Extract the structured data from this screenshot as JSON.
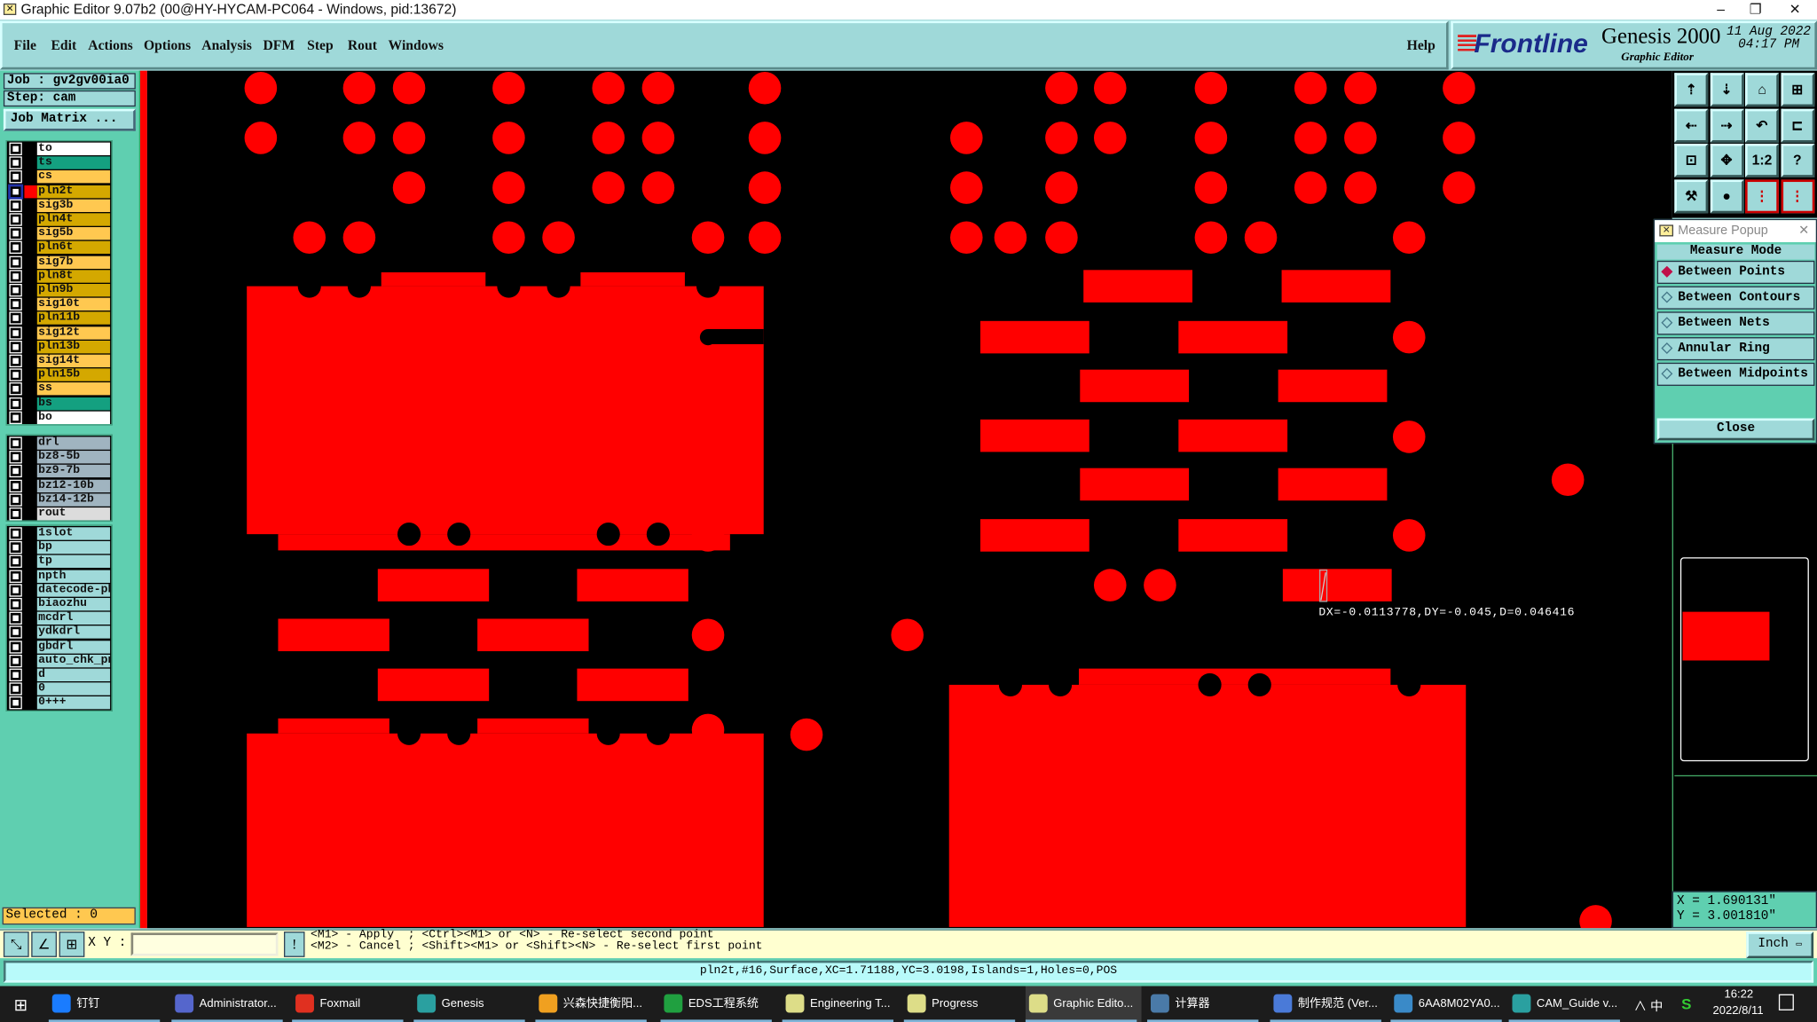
{
  "window": {
    "title": "Graphic Editor 9.07b2 (00@HY-HYCAM-PC064 - Windows, pid:13672)"
  },
  "menu": {
    "items": [
      "File",
      "Edit",
      "Actions",
      "Options",
      "Analysis",
      "DFM",
      "Step",
      "Rout",
      "Windows"
    ],
    "help": "Help"
  },
  "logo": {
    "brand": "Frontline",
    "product": "Genesis 2000",
    "subtitle": "Graphic Editor",
    "date": "11 Aug 2022",
    "time": "04:17 PM"
  },
  "job": {
    "job_label": "Job : gv2gv00ia0",
    "step_label": "Step: cam",
    "job_matrix": "Job Matrix ..."
  },
  "layers": {
    "groups": [
      [
        {
          "name": "to",
          "color": "#ffffff"
        },
        {
          "name": "ts",
          "color": "#14a080"
        },
        {
          "name": "cs",
          "color": "#ffc850"
        },
        {
          "name": "pln2t",
          "color": "#d4a800",
          "active": true,
          "display_color": "#ff0000"
        },
        {
          "name": "sig3b",
          "color": "#ffc850"
        },
        {
          "name": "pln4t",
          "color": "#d4a800"
        },
        {
          "name": "sig5b",
          "color": "#ffc850"
        },
        {
          "name": "pln6t",
          "color": "#d4a800"
        },
        {
          "name": "sig7b",
          "color": "#ffc850"
        },
        {
          "name": "pln8t",
          "color": "#d4a800"
        },
        {
          "name": "pln9b",
          "color": "#d4a800"
        },
        {
          "name": "sig10t",
          "color": "#ffc850"
        },
        {
          "name": "pln11b",
          "color": "#d4a800"
        },
        {
          "name": "sig12t",
          "color": "#ffc850"
        },
        {
          "name": "pln13b",
          "color": "#d4a800"
        },
        {
          "name": "sig14t",
          "color": "#ffc850"
        },
        {
          "name": "pln15b",
          "color": "#d4a800"
        },
        {
          "name": "ss",
          "color": "#ffc850"
        },
        {
          "name": "bs",
          "color": "#14a080"
        },
        {
          "name": "bo",
          "color": "#ffffff"
        }
      ],
      [
        {
          "name": "drl",
          "color": "#a0b4c0"
        },
        {
          "name": "bz8-5b",
          "color": "#a0b4c0"
        },
        {
          "name": "bz9-7b",
          "color": "#a0b4c0"
        },
        {
          "name": "bz12-10b",
          "color": "#a0b4c0"
        },
        {
          "name": "bz14-12b",
          "color": "#a0b4c0"
        },
        {
          "name": "rout",
          "color": "#dcdcdc"
        }
      ],
      [
        {
          "name": "1slot",
          "color": "#9fd9d9"
        },
        {
          "name": "bp",
          "color": "#9fd9d9"
        },
        {
          "name": "tp",
          "color": "#9fd9d9"
        },
        {
          "name": "npth",
          "color": "#9fd9d9"
        },
        {
          "name": "datecode-pbe",
          "color": "#9fd9d9"
        },
        {
          "name": "biaozhu",
          "color": "#9fd9d9"
        },
        {
          "name": "mcdrl",
          "color": "#9fd9d9"
        },
        {
          "name": "ydkdrl",
          "color": "#9fd9d9"
        },
        {
          "name": "gbdrl",
          "color": "#9fd9d9"
        },
        {
          "name": "auto_chk_pnl",
          "color": "#9fd9d9"
        },
        {
          "name": "d",
          "color": "#9fd9d9"
        },
        {
          "name": "0",
          "color": "#9fd9d9"
        },
        {
          "name": "0+++",
          "color": "#9fd9d9"
        }
      ]
    ],
    "selected": "Selected : 0"
  },
  "canvas": {
    "background": "#000000",
    "feature_color": "#ff0000",
    "measure_readout": "DX=-0.0113778,DY=-0.045,D=0.046416"
  },
  "toolbar_icons": [
    "zoom-in-layer-icon",
    "zoom-out-layer-icon",
    "home-icon",
    "grid-xy-icon",
    "pan-left-icon",
    "pan-right-icon",
    "undo-view-icon",
    "snap-icon",
    "zoom-fit-icon",
    "zoom-center-icon",
    "scale-1-2-icon",
    "help-icon",
    "tools-icon",
    "measure-icon",
    "netlist-icon",
    "netlist-alt-icon"
  ],
  "toolbar_labels": {
    "scale": "1:2",
    "help": "?"
  },
  "measure_popup": {
    "title": "Measure Popup",
    "header": "Measure Mode",
    "modes": [
      {
        "label": "Between Points",
        "selected": true
      },
      {
        "label": "Between Contours",
        "selected": false
      },
      {
        "label": "Between Nets",
        "selected": false
      },
      {
        "label": "Annular Ring",
        "selected": false
      },
      {
        "label": "Between Midpoints",
        "selected": false
      }
    ],
    "close": "Close"
  },
  "coordinates": {
    "x": "X = 1.690131\"",
    "y": "Y = 3.001810\""
  },
  "bottom": {
    "xy_label": "X Y :",
    "xy_value": "",
    "hint_line1": "<M1> - Apply  ; <Ctrl><M1> or <N> - Re-select second point",
    "hint_line2": "<M2> - Cancel ; <Shift><M1> or <Shift><N> - Re-select first point",
    "units": "Inch"
  },
  "status": {
    "text": "pln2t,#16,Surface,XC=1.71188,YC=3.0198,Islands=1,Holes=0,POS"
  },
  "taskbar": {
    "items": [
      {
        "label": "钉钉",
        "color": "#1a7cff"
      },
      {
        "label": "Administrator...",
        "color": "#5566cc"
      },
      {
        "label": "Foxmail",
        "color": "#e03020"
      },
      {
        "label": "Genesis",
        "color": "#2aa0a0"
      },
      {
        "label": "兴森快捷衡阳...",
        "color": "#f0a020"
      },
      {
        "label": "EDS工程系统",
        "color": "#20a040"
      },
      {
        "label": "Engineering T...",
        "color": "#dddd88"
      },
      {
        "label": "Progress",
        "color": "#dddd88"
      },
      {
        "label": "Graphic Edito...",
        "color": "#dddd88",
        "active": true
      },
      {
        "label": "计算器",
        "color": "#4a7aa8"
      },
      {
        "label": "制作规范 (Ver...",
        "color": "#4a7ad8"
      },
      {
        "label": "6AA8M02YA0...",
        "color": "#3a8ac8"
      },
      {
        "label": "CAM_Guide v...",
        "color": "#2aa0a0"
      }
    ],
    "tray": "∧ 中",
    "time": "16:22",
    "date": "2022/8/11"
  }
}
